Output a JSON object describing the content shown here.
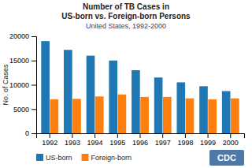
{
  "chart_data": {
    "type": "bar",
    "title": "Number of TB Cases in\nUS-born vs. Foreign-born Persons",
    "subtitle": "United States, 1992-2000",
    "y_label": "No. of Cases",
    "categories": [
      "1992",
      "1993",
      "1994",
      "1995",
      "1996",
      "1997",
      "1998",
      "1999",
      "2000"
    ],
    "series": [
      {
        "name": "US-born",
        "values": [
          19000,
          17200,
          16000,
          15000,
          13000,
          11500,
          10500,
          9700,
          8700
        ]
      },
      {
        "name": "Foreign-born",
        "values": [
          7000,
          7100,
          7600,
          8000,
          7500,
          7500,
          7200,
          7000,
          7200
        ]
      }
    ],
    "ylim": [
      0,
      20000
    ],
    "yticks": [
      0,
      5000,
      10000,
      15000,
      20000
    ],
    "grid": false,
    "legend": "bottom",
    "annotations": [
      "CDC"
    ]
  }
}
